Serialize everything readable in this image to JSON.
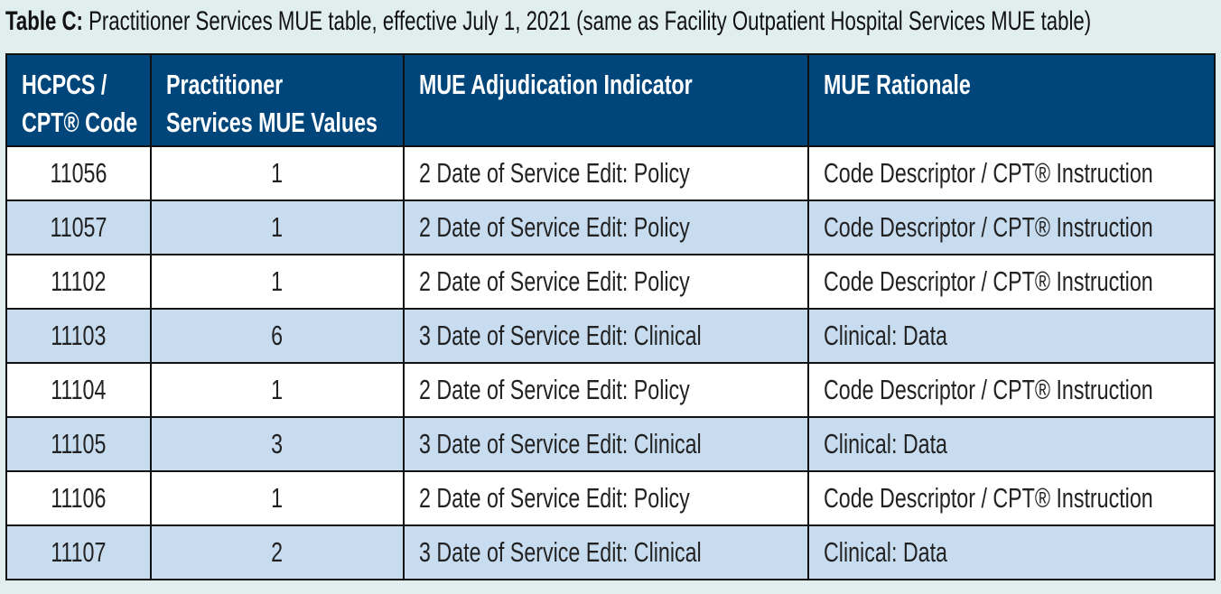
{
  "caption": {
    "label": "Table C:",
    "text": " Practitioner Services MUE table, effective July 1, 2021 (same as Facility Outpatient Hospital Services MUE table)"
  },
  "colors": {
    "header_bg": "#00467a",
    "alt_row": "#c8dcf0",
    "page_bg": "#e0eeee"
  },
  "headers": [
    [
      "HCPCS /",
      "CPT® Code"
    ],
    [
      "Practitioner",
      "Services MUE Values"
    ],
    [
      "MUE Adjudication Indicator",
      ""
    ],
    [
      "MUE Rationale",
      ""
    ]
  ],
  "rows": [
    [
      "11056",
      "1",
      "2 Date of Service Edit: Policy",
      "Code Descriptor / CPT® Instruction"
    ],
    [
      "11057",
      "1",
      "2 Date of Service Edit: Policy",
      "Code Descriptor / CPT® Instruction"
    ],
    [
      "11102",
      "1",
      "2 Date of Service Edit: Policy",
      "Code Descriptor / CPT® Instruction"
    ],
    [
      "11103",
      "6",
      "3 Date of Service Edit: Clinical",
      "Clinical: Data"
    ],
    [
      "11104",
      "1",
      "2 Date of Service Edit: Policy",
      "Code Descriptor / CPT® Instruction"
    ],
    [
      "11105",
      "3",
      "3 Date of Service Edit: Clinical",
      "Clinical: Data"
    ],
    [
      "11106",
      "1",
      "2 Date of Service Edit: Policy",
      "Code Descriptor / CPT® Instruction"
    ],
    [
      "11107",
      "2",
      "3 Date of Service Edit: Clinical",
      "Clinical: Data"
    ]
  ]
}
